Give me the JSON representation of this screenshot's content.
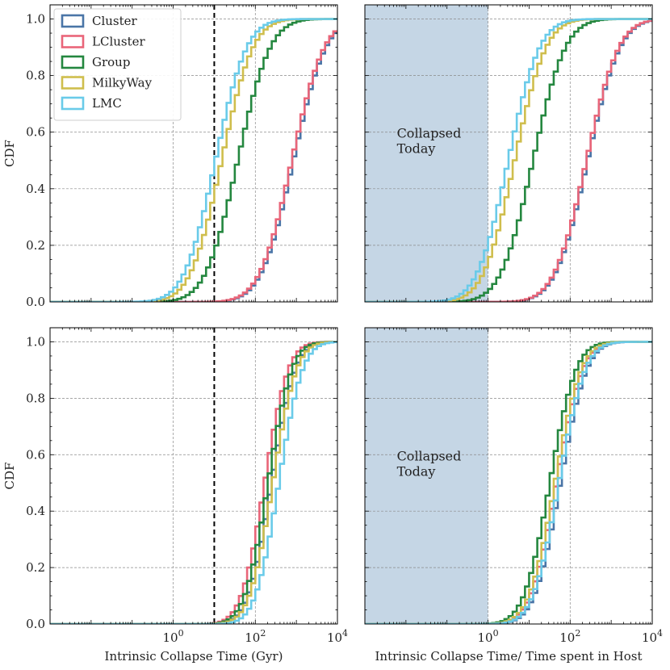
{
  "chart_data": {
    "type": "line",
    "subtype": "step-cdf",
    "layout": "2x2",
    "xscale": "log10",
    "xlim": [
      0.001,
      10000
    ],
    "ylim": [
      0,
      1.05
    ],
    "x_tick_values": [
      1,
      100,
      10000
    ],
    "x_tick_labels": [
      "10^0",
      "10^2",
      "10^4"
    ],
    "y_tick_labels": [
      "0.0",
      "0.2",
      "0.4",
      "0.6",
      "0.8",
      "1.0"
    ],
    "ylabel": "CDF",
    "xlabels": [
      "Intrinsic Collapse Time (Gyr)",
      "Intrinsic Collapse Time/ Time spent in Host"
    ],
    "grid": true,
    "legend": {
      "location": "top-left of first panel"
    },
    "series": [
      {
        "name": "Cluster",
        "color": "#4a75a7"
      },
      {
        "name": "LCluster",
        "color": "#e96579"
      },
      {
        "name": "Group",
        "color": "#24873f"
      },
      {
        "name": "MilkyWay",
        "color": "#cfbe4d"
      },
      {
        "name": "LMC",
        "color": "#6acbe9"
      }
    ],
    "panels": [
      {
        "id": "top-left",
        "show_xticklabels": false,
        "show_ylabel": true,
        "vline": 10,
        "shade": null,
        "annotation": null,
        "curves": [
          {
            "series": "Cluster",
            "median": 950,
            "sigma": 0.62
          },
          {
            "series": "LCluster",
            "median": 870,
            "sigma": 0.62
          },
          {
            "series": "Group",
            "median": 42,
            "sigma": 0.62
          },
          {
            "series": "MilkyWay",
            "median": 17,
            "sigma": 0.6
          },
          {
            "series": "LMC",
            "median": 12,
            "sigma": 0.6
          }
        ]
      },
      {
        "id": "top-right",
        "show_xticklabels": false,
        "show_ylabel": false,
        "vline": null,
        "shade": [
          0.001,
          1
        ],
        "annotation": {
          "lines": [
            "Collapsed",
            "Today"
          ],
          "x": 0.006,
          "y": 0.58
        },
        "curves": [
          {
            "series": "Cluster",
            "median": 300,
            "sigma": 0.62
          },
          {
            "series": "LCluster",
            "median": 280,
            "sigma": 0.62
          },
          {
            "series": "Group",
            "median": 14,
            "sigma": 0.62
          },
          {
            "series": "MilkyWay",
            "median": 5,
            "sigma": 0.6
          },
          {
            "series": "LMC",
            "median": 3.5,
            "sigma": 0.6
          }
        ]
      },
      {
        "id": "bottom-left",
        "show_xticklabels": true,
        "show_ylabel": true,
        "vline": 10,
        "shade": null,
        "annotation": null,
        "curves": [
          {
            "series": "Cluster",
            "median": 280,
            "sigma": 0.45
          },
          {
            "series": "LCluster",
            "median": 190,
            "sigma": 0.45
          },
          {
            "series": "Group",
            "median": 230,
            "sigma": 0.45
          },
          {
            "series": "MilkyWay",
            "median": 300,
            "sigma": 0.45
          },
          {
            "series": "LMC",
            "median": 420,
            "sigma": 0.45
          }
        ]
      },
      {
        "id": "bottom-right",
        "show_xticklabels": true,
        "show_ylabel": false,
        "vline": null,
        "shade": [
          0.001,
          1
        ],
        "annotation": {
          "lines": [
            "Collapsed",
            "Today"
          ],
          "x": 0.006,
          "y": 0.58
        },
        "curves": [
          {
            "series": "Cluster",
            "median": 65,
            "sigma": 0.5
          },
          {
            "series": "LCluster",
            "median": 52,
            "sigma": 0.5
          },
          {
            "series": "Group",
            "median": 36,
            "sigma": 0.5
          },
          {
            "series": "MilkyWay",
            "median": 48,
            "sigma": 0.5
          },
          {
            "series": "LMC",
            "median": 60,
            "sigma": 0.5
          }
        ]
      }
    ]
  }
}
